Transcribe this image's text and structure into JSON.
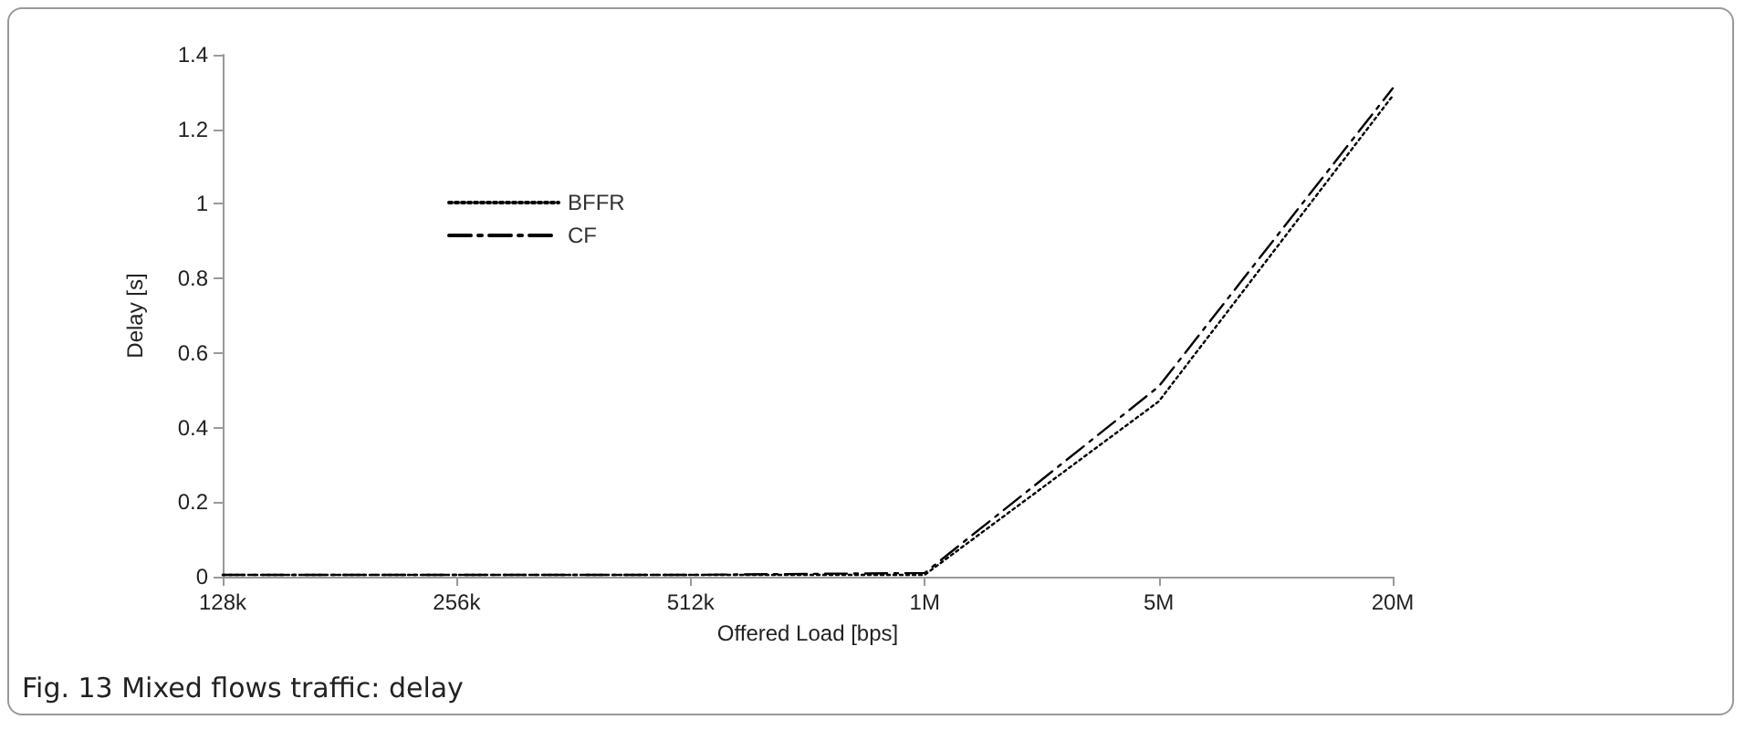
{
  "chart_data": {
    "type": "line",
    "annotations": [
      "Fig. 13  Mixed flows traffic: delay"
    ],
    "xlabel": "Offered Load [bps]",
    "ylabel": "Delay [s]",
    "categories": [
      "128k",
      "256k",
      "512k",
      "1M",
      "5M",
      "20M"
    ],
    "series": [
      {
        "name": "BFFR",
        "color": "#000000",
        "line_style": "dotted",
        "values": [
          0.005,
          0.005,
          0.005,
          0.005,
          0.47,
          1.29
        ]
      },
      {
        "name": "CF",
        "color": "#000000",
        "line_style": "dashed",
        "values": [
          0.005,
          0.005,
          0.005,
          0.01,
          0.51,
          1.31
        ]
      }
    ],
    "ylim": [
      0,
      1.4
    ],
    "yticks": [
      0,
      0.2,
      0.4,
      0.6,
      0.8,
      1,
      1.2,
      1.4
    ],
    "grid": false,
    "legend": "top left",
    "marker": "none"
  }
}
